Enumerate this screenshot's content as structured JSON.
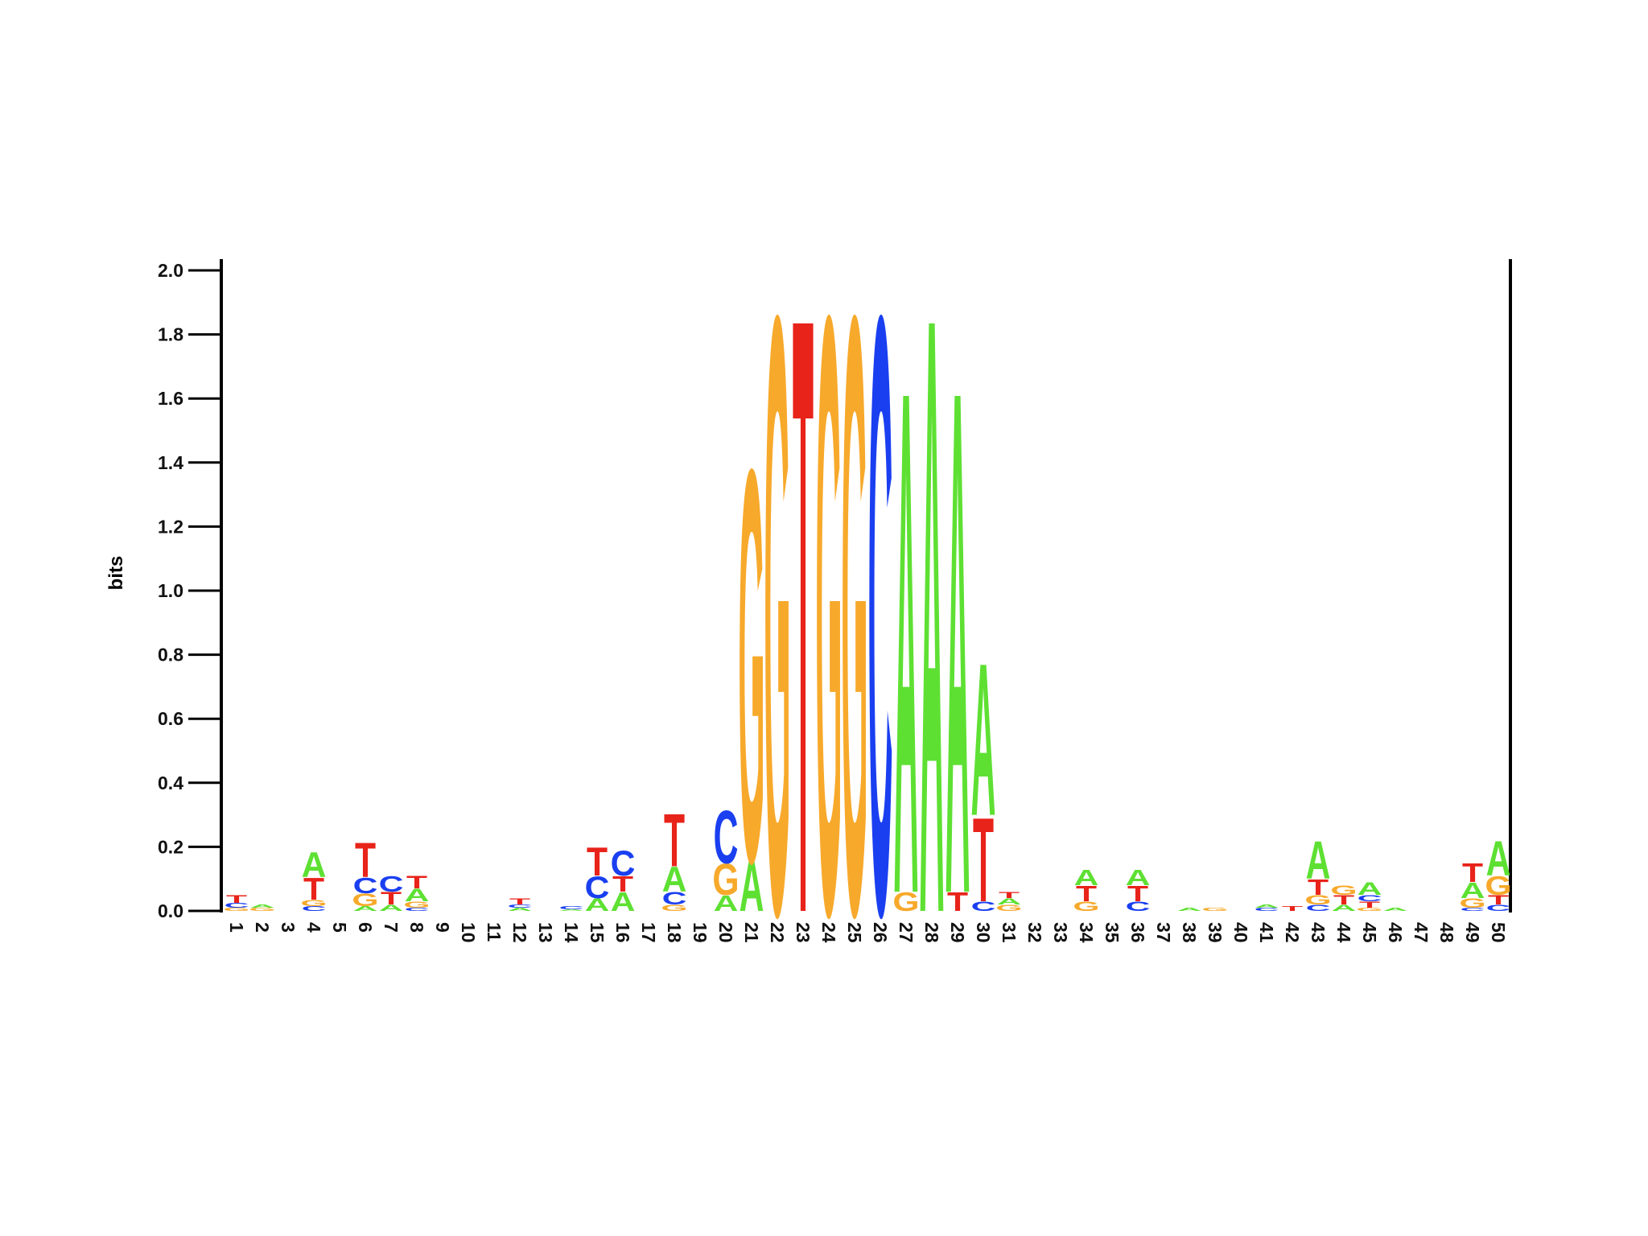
{
  "chart_data": {
    "type": "logo",
    "ylabel": "bits",
    "ylim": [
      0,
      2
    ],
    "yticks": [
      {
        "value": 0,
        "label": "0.0"
      },
      0.2,
      0.4,
      0.6,
      0.8,
      {
        "value": 1,
        "label": "1.0"
      },
      1.2,
      1.4,
      1.6,
      1.8,
      {
        "value": 2,
        "label": "2.0"
      }
    ],
    "colors": {
      "A": "#5ee033",
      "C": "#1a3ff0",
      "G": "#f7a92b",
      "T": "#e8231a"
    },
    "categories": [
      "1",
      "2",
      "3",
      "4",
      "5",
      "6",
      "7",
      "8",
      "9",
      "10",
      "11",
      "12",
      "13",
      "14",
      "15",
      "16",
      "17",
      "18",
      "19",
      "20",
      "21",
      "22",
      "23",
      "24",
      "25",
      "26",
      "27",
      "28",
      "29",
      "30",
      "31",
      "32",
      "33",
      "34",
      "35",
      "36",
      "37",
      "38",
      "39",
      "40",
      "41",
      "42",
      "43",
      "44",
      "45",
      "46",
      "47",
      "48",
      "49",
      "50"
    ],
    "stacks": [
      [
        {
          "letter": "G",
          "value": 0.01
        },
        {
          "letter": "C",
          "value": 0.015
        },
        {
          "letter": "T",
          "value": 0.025
        }
      ],
      [
        {
          "letter": "G",
          "value": 0.01
        },
        {
          "letter": "A",
          "value": 0.01
        }
      ],
      [],
      [
        {
          "letter": "C",
          "value": 0.015
        },
        {
          "letter": "G",
          "value": 0.02
        },
        {
          "letter": "T",
          "value": 0.07
        },
        {
          "letter": "A",
          "value": 0.08
        }
      ],
      [],
      [
        {
          "letter": "A",
          "value": 0.015
        },
        {
          "letter": "G",
          "value": 0.04
        },
        {
          "letter": "C",
          "value": 0.05
        },
        {
          "letter": "T",
          "value": 0.11
        }
      ],
      [
        {
          "letter": "A",
          "value": 0.02
        },
        {
          "letter": "T",
          "value": 0.04
        },
        {
          "letter": "C",
          "value": 0.05
        }
      ],
      [
        {
          "letter": "C",
          "value": 0.01
        },
        {
          "letter": "G",
          "value": 0.02
        },
        {
          "letter": "A",
          "value": 0.04
        },
        {
          "letter": "T",
          "value": 0.04
        }
      ],
      [],
      [],
      [],
      [
        {
          "letter": "A",
          "value": 0.01
        },
        {
          "letter": "C",
          "value": 0.01
        },
        {
          "letter": "T",
          "value": 0.02
        }
      ],
      [],
      [
        {
          "letter": "A",
          "value": 0.005
        },
        {
          "letter": "C",
          "value": 0.01
        }
      ],
      [
        {
          "letter": "A",
          "value": 0.04
        },
        {
          "letter": "C",
          "value": 0.07
        },
        {
          "letter": "T",
          "value": 0.09
        }
      ],
      [
        {
          "letter": "A",
          "value": 0.06
        },
        {
          "letter": "T",
          "value": 0.05
        },
        {
          "letter": "C",
          "value": 0.08
        }
      ],
      [],
      [
        {
          "letter": "G",
          "value": 0.02
        },
        {
          "letter": "C",
          "value": 0.04
        },
        {
          "letter": "A",
          "value": 0.08
        },
        {
          "letter": "T",
          "value": 0.17
        }
      ],
      [],
      [
        {
          "letter": "A",
          "value": 0.05
        },
        {
          "letter": "G",
          "value": 0.1
        },
        {
          "letter": "C",
          "value": 0.17
        }
      ],
      [
        {
          "letter": "A",
          "value": 0.16
        },
        {
          "letter": "G",
          "value": 1.26
        }
      ],
      [
        {
          "letter": "G",
          "value": 1.92
        }
      ],
      [
        {
          "letter": "T",
          "value": 1.92
        }
      ],
      [
        {
          "letter": "G",
          "value": 1.92
        }
      ],
      [
        {
          "letter": "G",
          "value": 1.92
        }
      ],
      [
        {
          "letter": "C",
          "value": 1.92
        }
      ],
      [
        {
          "letter": "G",
          "value": 0.06
        },
        {
          "letter": "A",
          "value": 1.62
        }
      ],
      [
        {
          "letter": "A",
          "value": 1.92
        }
      ],
      [
        {
          "letter": "T",
          "value": 0.06
        },
        {
          "letter": "A",
          "value": 1.62
        }
      ],
      [
        {
          "letter": "C",
          "value": 0.03
        },
        {
          "letter": "T",
          "value": 0.27
        },
        {
          "letter": "A",
          "value": 0.49
        }
      ],
      [
        {
          "letter": "G",
          "value": 0.02
        },
        {
          "letter": "A",
          "value": 0.02
        },
        {
          "letter": "T",
          "value": 0.02
        }
      ],
      [],
      [],
      [
        {
          "letter": "G",
          "value": 0.03
        },
        {
          "letter": "T",
          "value": 0.05
        },
        {
          "letter": "A",
          "value": 0.05
        }
      ],
      [],
      [
        {
          "letter": "C",
          "value": 0.03
        },
        {
          "letter": "T",
          "value": 0.05
        },
        {
          "letter": "A",
          "value": 0.05
        }
      ],
      [],
      [
        {
          "letter": "A",
          "value": 0.01
        }
      ],
      [
        {
          "letter": "G",
          "value": 0.01
        }
      ],
      [],
      [
        {
          "letter": "C",
          "value": 0.01
        },
        {
          "letter": "A",
          "value": 0.01
        }
      ],
      [
        {
          "letter": "T",
          "value": 0.015
        }
      ],
      [
        {
          "letter": "C",
          "value": 0.02
        },
        {
          "letter": "G",
          "value": 0.03
        },
        {
          "letter": "T",
          "value": 0.05
        },
        {
          "letter": "A",
          "value": 0.12
        }
      ],
      [
        {
          "letter": "A",
          "value": 0.02
        },
        {
          "letter": "T",
          "value": 0.03
        },
        {
          "letter": "G",
          "value": 0.03
        }
      ],
      [
        {
          "letter": "G",
          "value": 0.01
        },
        {
          "letter": "T",
          "value": 0.02
        },
        {
          "letter": "C",
          "value": 0.02
        },
        {
          "letter": "A",
          "value": 0.04
        }
      ],
      [
        {
          "letter": "A",
          "value": 0.01
        }
      ],
      [],
      [],
      [
        {
          "letter": "C",
          "value": 0.01
        },
        {
          "letter": "G",
          "value": 0.03
        },
        {
          "letter": "A",
          "value": 0.05
        },
        {
          "letter": "T",
          "value": 0.06
        }
      ],
      [
        {
          "letter": "C",
          "value": 0.02
        },
        {
          "letter": "T",
          "value": 0.03
        },
        {
          "letter": "G",
          "value": 0.06
        },
        {
          "letter": "A",
          "value": 0.11
        }
      ]
    ]
  }
}
